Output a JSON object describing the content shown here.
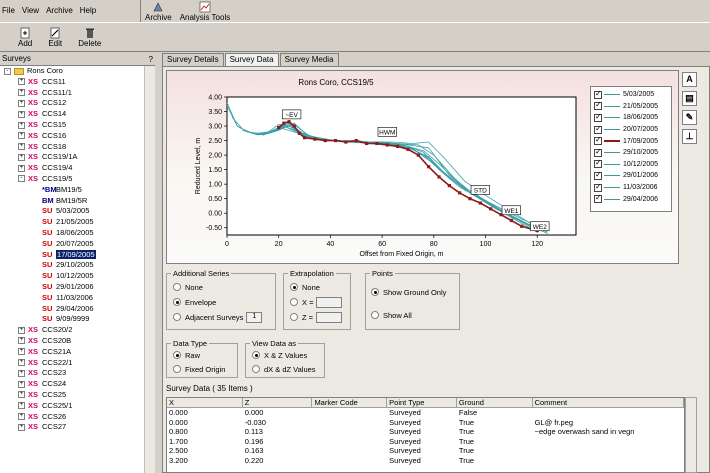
{
  "menu": [
    "File",
    "View",
    "Archive",
    "Help"
  ],
  "topbar": {
    "archive": "Archive",
    "analysis_tools": "Analysis Tools"
  },
  "toolbar": {
    "add": "Add",
    "edit": "Edit",
    "delete": "Delete"
  },
  "surveys_panel": {
    "title": "Surveys",
    "control": "?"
  },
  "tree": [
    {
      "tag": "",
      "label": "Rons Coro",
      "level": 0,
      "type": "folder",
      "exp": "-"
    },
    {
      "tag": "XS",
      "label": "CCS11",
      "level": 1,
      "type": "xs",
      "exp": "+"
    },
    {
      "tag": "XS",
      "label": "CCS11/1",
      "level": 1,
      "type": "xs",
      "exp": "+"
    },
    {
      "tag": "XS",
      "label": "CCS12",
      "level": 1,
      "type": "xs",
      "exp": "+"
    },
    {
      "tag": "XS",
      "label": "CCS14",
      "level": 1,
      "type": "xs",
      "exp": "+"
    },
    {
      "tag": "XS",
      "label": "CCS15",
      "level": 1,
      "type": "xs",
      "exp": "+"
    },
    {
      "tag": "XS",
      "label": "CCS16",
      "level": 1,
      "type": "xs",
      "exp": "+"
    },
    {
      "tag": "XS",
      "label": "CCS18",
      "level": 1,
      "type": "xs",
      "exp": "+"
    },
    {
      "tag": "XS",
      "label": "CCS19/1A",
      "level": 1,
      "type": "xs",
      "exp": "+"
    },
    {
      "tag": "XS",
      "label": "CCS19/4",
      "level": 1,
      "type": "xs",
      "exp": "+"
    },
    {
      "tag": "XS",
      "label": "CCS19/5",
      "level": 1,
      "type": "xs",
      "exp": "-"
    },
    {
      "tag": "*BM",
      "label": "BM19/5",
      "level": 2,
      "type": "bm",
      "exp": ""
    },
    {
      "tag": "BM",
      "label": "BM19/5R",
      "level": 2,
      "type": "bm",
      "exp": ""
    },
    {
      "tag": "SU",
      "label": "5/03/2005",
      "level": 2,
      "type": "su",
      "exp": ""
    },
    {
      "tag": "SU",
      "label": "21/05/2005",
      "level": 2,
      "type": "su",
      "exp": ""
    },
    {
      "tag": "SU",
      "label": "18/06/2005",
      "level": 2,
      "type": "su",
      "exp": ""
    },
    {
      "tag": "SU",
      "label": "20/07/2005",
      "level": 2,
      "type": "su",
      "exp": ""
    },
    {
      "tag": "SU",
      "label": "17/09/2005",
      "level": 2,
      "type": "su",
      "exp": "",
      "selected": true
    },
    {
      "tag": "SU",
      "label": "29/10/2005",
      "level": 2,
      "type": "su",
      "exp": ""
    },
    {
      "tag": "SU",
      "label": "10/12/2005",
      "level": 2,
      "type": "su",
      "exp": ""
    },
    {
      "tag": "SU",
      "label": "29/01/2006",
      "level": 2,
      "type": "su",
      "exp": ""
    },
    {
      "tag": "SU",
      "label": "11/03/2006",
      "level": 2,
      "type": "su",
      "exp": ""
    },
    {
      "tag": "SU",
      "label": "29/04/2006",
      "level": 2,
      "type": "su",
      "exp": ""
    },
    {
      "tag": "SU",
      "label": "9/09/9999",
      "level": 2,
      "type": "su",
      "exp": ""
    },
    {
      "tag": "XS",
      "label": "CCS20/2",
      "level": 1,
      "type": "xs",
      "exp": "+"
    },
    {
      "tag": "XS",
      "label": "CCS20B",
      "level": 1,
      "type": "xs",
      "exp": "+"
    },
    {
      "tag": "XS",
      "label": "CCS21A",
      "level": 1,
      "type": "xs",
      "exp": "+"
    },
    {
      "tag": "XS",
      "label": "CCS22/1",
      "level": 1,
      "type": "xs",
      "exp": "+"
    },
    {
      "tag": "XS",
      "label": "CCS23",
      "level": 1,
      "type": "xs",
      "exp": "+"
    },
    {
      "tag": "XS",
      "label": "CCS24",
      "level": 1,
      "type": "xs",
      "exp": "+"
    },
    {
      "tag": "XS",
      "label": "CCS25",
      "level": 1,
      "type": "xs",
      "exp": "+"
    },
    {
      "tag": "XS",
      "label": "CCS25/1",
      "level": 1,
      "type": "xs",
      "exp": "+"
    },
    {
      "tag": "XS",
      "label": "CCS26",
      "level": 1,
      "type": "xs",
      "exp": "+"
    },
    {
      "tag": "XS",
      "label": "CCS27",
      "level": 1,
      "type": "xs",
      "exp": "+"
    }
  ],
  "tabs": [
    "Survey Details",
    "Survey Data",
    "Survey Media"
  ],
  "chart_data": {
    "type": "line",
    "title": "Rons Coro, CCS19/5",
    "xlabel": "Offset from Fixed Origin, m",
    "ylabel": "Reduced Level, m",
    "xlim": [
      0,
      135
    ],
    "ylim": [
      -0.75,
      4.0
    ],
    "xticks": [
      0,
      20,
      40,
      60,
      80,
      100,
      120
    ],
    "yticks": [
      4.0,
      3.5,
      3.0,
      2.5,
      2.0,
      1.5,
      1.0,
      0.5,
      0.0,
      -0.5
    ],
    "ytick_labels": [
      "4.00",
      "3.50",
      "3.00",
      "2.50",
      "2.00",
      "1.50",
      "1.00",
      "0.50",
      "0.00",
      "-0.50"
    ],
    "highlight": {
      "name": "17/09/2005",
      "x": [
        20,
        22,
        24,
        26,
        28,
        30,
        34,
        38,
        42,
        46,
        50,
        54,
        58,
        62,
        66,
        70,
        74,
        78,
        82,
        86,
        90,
        94,
        98,
        102,
        106,
        110,
        114,
        118,
        120
      ],
      "y": [
        2.95,
        3.1,
        3.15,
        3.0,
        2.75,
        2.6,
        2.55,
        2.5,
        2.5,
        2.45,
        2.5,
        2.4,
        2.4,
        2.35,
        2.3,
        2.2,
        2.0,
        1.6,
        1.25,
        0.95,
        0.7,
        0.5,
        0.35,
        0.15,
        -0.05,
        -0.25,
        -0.45,
        -0.55,
        -0.6
      ]
    },
    "others": [
      {
        "name": "5/03/2005",
        "x": [
          0,
          4,
          8,
          12,
          16,
          20,
          24,
          30,
          40,
          50,
          60,
          70,
          76,
          82,
          90,
          100,
          110,
          118
        ],
        "y": [
          3.8,
          3.0,
          2.8,
          2.75,
          2.8,
          3.05,
          3.0,
          2.7,
          2.5,
          2.45,
          2.35,
          2.3,
          2.1,
          1.5,
          0.9,
          0.4,
          -0.1,
          -0.5
        ]
      },
      {
        "name": "21/05/2005",
        "x": [
          0,
          4,
          8,
          12,
          16,
          20,
          24,
          30,
          40,
          50,
          60,
          70,
          78,
          86,
          94,
          104,
          114,
          120
        ],
        "y": [
          3.7,
          3.0,
          2.8,
          2.7,
          2.75,
          2.95,
          3.1,
          2.65,
          2.5,
          2.5,
          2.4,
          2.35,
          2.25,
          1.3,
          0.7,
          0.2,
          -0.3,
          -0.55
        ]
      },
      {
        "name": "18/06/2005",
        "x": [
          2,
          6,
          10,
          14,
          18,
          22,
          28,
          36,
          46,
          56,
          66,
          74,
          80,
          88,
          96,
          106,
          116
        ],
        "y": [
          3.3,
          2.9,
          2.75,
          2.7,
          2.8,
          3.0,
          2.75,
          2.55,
          2.45,
          2.45,
          2.4,
          2.35,
          2.0,
          1.2,
          0.6,
          0.1,
          -0.4
        ]
      },
      {
        "name": "20/07/2005",
        "x": [
          4,
          8,
          14,
          20,
          26,
          34,
          44,
          54,
          64,
          72,
          78,
          84,
          92,
          102,
          112,
          122
        ],
        "y": [
          3.0,
          2.8,
          2.7,
          2.95,
          2.8,
          2.55,
          2.5,
          2.45,
          2.45,
          2.4,
          2.45,
          1.9,
          1.1,
          0.5,
          -0.05,
          -0.6
        ]
      },
      {
        "name": "29/10/2005",
        "x": [
          6,
          12,
          18,
          24,
          30,
          40,
          50,
          60,
          68,
          76,
          82,
          90,
          100,
          110,
          120
        ],
        "y": [
          2.85,
          2.7,
          2.8,
          3.05,
          2.65,
          2.5,
          2.45,
          2.45,
          2.35,
          2.15,
          1.7,
          1.0,
          0.4,
          -0.15,
          -0.65
        ]
      },
      {
        "name": "10/12/2005",
        "x": [
          8,
          14,
          20,
          26,
          32,
          42,
          52,
          62,
          70,
          78,
          84,
          92,
          104,
          114,
          122
        ],
        "y": [
          2.8,
          2.7,
          2.85,
          3.1,
          2.6,
          2.5,
          2.45,
          2.4,
          2.3,
          1.9,
          1.4,
          0.8,
          0.25,
          -0.2,
          -0.5
        ]
      },
      {
        "name": "29/01/2006",
        "x": [
          10,
          16,
          22,
          28,
          36,
          46,
          56,
          64,
          72,
          80,
          88,
          98,
          108,
          118
        ],
        "y": [
          2.75,
          2.75,
          3.0,
          2.8,
          2.55,
          2.45,
          2.4,
          2.35,
          2.2,
          1.7,
          1.1,
          0.55,
          0.0,
          -0.45
        ]
      },
      {
        "name": "11/03/2006",
        "x": [
          12,
          18,
          24,
          30,
          40,
          50,
          60,
          70,
          76,
          84,
          94,
          104,
          114,
          124
        ],
        "y": [
          2.7,
          2.85,
          3.1,
          2.7,
          2.5,
          2.45,
          2.45,
          2.3,
          2.0,
          1.35,
          0.7,
          0.15,
          -0.3,
          -0.7
        ]
      },
      {
        "name": "29/04/2006",
        "x": [
          14,
          20,
          26,
          32,
          42,
          52,
          62,
          70,
          78,
          86,
          96,
          106,
          116,
          124
        ],
        "y": [
          2.7,
          2.9,
          3.05,
          2.65,
          2.5,
          2.45,
          2.4,
          2.25,
          1.95,
          1.2,
          0.65,
          0.1,
          -0.35,
          -0.65
        ]
      }
    ],
    "annotations": [
      {
        "label": "~EV",
        "x": 25,
        "y": 3.35
      },
      {
        "label": "HWM",
        "x": 62,
        "y": 2.75
      },
      {
        "label": "STD",
        "x": 98,
        "y": 0.75
      },
      {
        "label": "WE1",
        "x": 110,
        "y": 0.05
      },
      {
        "label": "WE2",
        "x": 121,
        "y": -0.5
      }
    ],
    "legend": [
      "5/03/2005",
      "21/05/2005",
      "18/06/2005",
      "20/07/2005",
      "17/09/2005",
      "29/10/2005",
      "10/12/2005",
      "29/01/2006",
      "11/03/2006",
      "29/04/2006"
    ],
    "legend_highlight": "17/09/2005",
    "colors": {
      "highlight": "#8b1a1a",
      "others": "#3aa0a8",
      "plot_bg": "#ffffff",
      "frame": "#000000"
    }
  },
  "side_tools": [
    "A",
    "img",
    "edit",
    "chart"
  ],
  "additional_series": {
    "title": "Additional Series",
    "options": [
      "None",
      "Envelope",
      "Adjacent Surveys"
    ],
    "selected": 1,
    "adjacent_value": "1"
  },
  "extrapolation": {
    "title": "Extrapolation",
    "options": [
      "None",
      "X =",
      "Z ="
    ],
    "selected": 0
  },
  "points": {
    "title": "Points",
    "options": [
      "Show Ground Only",
      "Show All"
    ],
    "selected": 0
  },
  "data_type": {
    "title": "Data Type",
    "options": [
      "Raw",
      "Fixed Origin"
    ],
    "selected": 0
  },
  "view_data_as": {
    "title": "View Data as",
    "options": [
      "X & Z Values",
      "dX & dZ Values"
    ],
    "selected": 0
  },
  "grid": {
    "label": "Survey Data ( 35 Items )",
    "columns": [
      "X",
      "Z",
      "Marker Code",
      "Point Type",
      "Ground",
      "Comment"
    ],
    "rows": [
      [
        "0.000",
        "0.000",
        "",
        "Surveyed",
        "False",
        ""
      ],
      [
        "0.000",
        "-0.030",
        "",
        "Surveyed",
        "True",
        "GL@ fr.peg"
      ],
      [
        "0.800",
        "0.113",
        "",
        "Surveyed",
        "True",
        "~edge overwash sand in vegn"
      ],
      [
        "1.700",
        "0.196",
        "",
        "Surveyed",
        "True",
        ""
      ],
      [
        "2.500",
        "0.163",
        "",
        "Surveyed",
        "True",
        ""
      ],
      [
        "3.200",
        "0.220",
        "",
        "Surveyed",
        "True",
        ""
      ]
    ]
  }
}
